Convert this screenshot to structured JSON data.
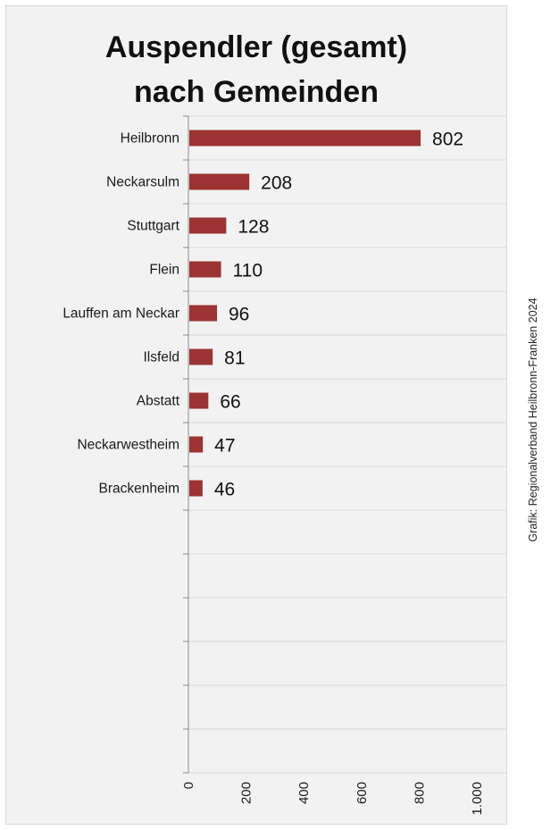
{
  "chart_data": {
    "type": "bar",
    "orientation": "horizontal",
    "title": "Auspendler (gesamt) nach Gemeinden",
    "title_lines": [
      "Auspendler (gesamt)",
      "nach Gemeinden"
    ],
    "categories": [
      "Heilbronn",
      "Neckarsulm",
      "Stuttgart",
      "Flein",
      "Lauffen am Neckar",
      "Ilsfeld",
      "Abstatt",
      "Neckarwestheim",
      "Brackenheim"
    ],
    "values": [
      802,
      208,
      128,
      110,
      96,
      81,
      66,
      47,
      46
    ],
    "value_labels": [
      "802",
      "208",
      "128",
      "110",
      "96",
      "81",
      "66",
      "47",
      "46"
    ],
    "xlim": [
      0,
      1000
    ],
    "x_ticks": [
      0,
      200,
      400,
      600,
      800,
      1000
    ],
    "x_tick_labels": [
      "0",
      "200",
      "400",
      "600",
      "800",
      "1.000"
    ],
    "grid": true,
    "bar_color": "#9b3432",
    "source_note": "Grafik: Regionalverband Heilbronn-Franken 2024"
  }
}
